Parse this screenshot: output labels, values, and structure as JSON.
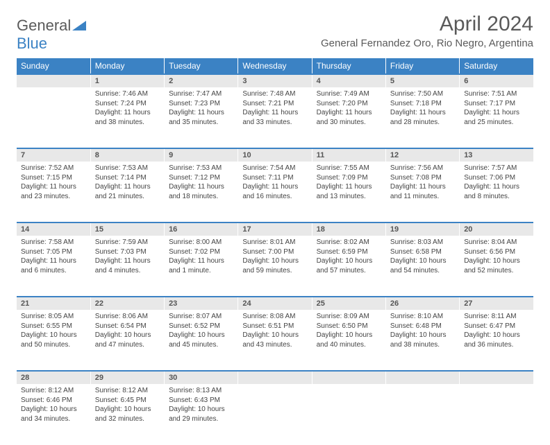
{
  "logo": {
    "general": "General",
    "blue": "Blue"
  },
  "title": "April 2024",
  "location": "General Fernandez Oro, Rio Negro, Argentina",
  "weekdays": [
    "Sunday",
    "Monday",
    "Tuesday",
    "Wednesday",
    "Thursday",
    "Friday",
    "Saturday"
  ],
  "header_bg": "#3b82c4",
  "header_fg": "#ffffff",
  "daynum_bg": "#e8e8e8",
  "row_border": "#3b82c4",
  "text_color": "#444444",
  "title_color": "#5a5a5a",
  "font_size_title": 30,
  "font_size_location": 15,
  "font_size_weekday": 12,
  "font_size_daynum": 11,
  "font_size_cell": 10,
  "weeks": [
    [
      null,
      {
        "n": "1",
        "sr": "7:46 AM",
        "ss": "7:24 PM",
        "dl": "11 hours and 38 minutes."
      },
      {
        "n": "2",
        "sr": "7:47 AM",
        "ss": "7:23 PM",
        "dl": "11 hours and 35 minutes."
      },
      {
        "n": "3",
        "sr": "7:48 AM",
        "ss": "7:21 PM",
        "dl": "11 hours and 33 minutes."
      },
      {
        "n": "4",
        "sr": "7:49 AM",
        "ss": "7:20 PM",
        "dl": "11 hours and 30 minutes."
      },
      {
        "n": "5",
        "sr": "7:50 AM",
        "ss": "7:18 PM",
        "dl": "11 hours and 28 minutes."
      },
      {
        "n": "6",
        "sr": "7:51 AM",
        "ss": "7:17 PM",
        "dl": "11 hours and 25 minutes."
      }
    ],
    [
      {
        "n": "7",
        "sr": "7:52 AM",
        "ss": "7:15 PM",
        "dl": "11 hours and 23 minutes."
      },
      {
        "n": "8",
        "sr": "7:53 AM",
        "ss": "7:14 PM",
        "dl": "11 hours and 21 minutes."
      },
      {
        "n": "9",
        "sr": "7:53 AM",
        "ss": "7:12 PM",
        "dl": "11 hours and 18 minutes."
      },
      {
        "n": "10",
        "sr": "7:54 AM",
        "ss": "7:11 PM",
        "dl": "11 hours and 16 minutes."
      },
      {
        "n": "11",
        "sr": "7:55 AM",
        "ss": "7:09 PM",
        "dl": "11 hours and 13 minutes."
      },
      {
        "n": "12",
        "sr": "7:56 AM",
        "ss": "7:08 PM",
        "dl": "11 hours and 11 minutes."
      },
      {
        "n": "13",
        "sr": "7:57 AM",
        "ss": "7:06 PM",
        "dl": "11 hours and 8 minutes."
      }
    ],
    [
      {
        "n": "14",
        "sr": "7:58 AM",
        "ss": "7:05 PM",
        "dl": "11 hours and 6 minutes."
      },
      {
        "n": "15",
        "sr": "7:59 AM",
        "ss": "7:03 PM",
        "dl": "11 hours and 4 minutes."
      },
      {
        "n": "16",
        "sr": "8:00 AM",
        "ss": "7:02 PM",
        "dl": "11 hours and 1 minute."
      },
      {
        "n": "17",
        "sr": "8:01 AM",
        "ss": "7:00 PM",
        "dl": "10 hours and 59 minutes."
      },
      {
        "n": "18",
        "sr": "8:02 AM",
        "ss": "6:59 PM",
        "dl": "10 hours and 57 minutes."
      },
      {
        "n": "19",
        "sr": "8:03 AM",
        "ss": "6:58 PM",
        "dl": "10 hours and 54 minutes."
      },
      {
        "n": "20",
        "sr": "8:04 AM",
        "ss": "6:56 PM",
        "dl": "10 hours and 52 minutes."
      }
    ],
    [
      {
        "n": "21",
        "sr": "8:05 AM",
        "ss": "6:55 PM",
        "dl": "10 hours and 50 minutes."
      },
      {
        "n": "22",
        "sr": "8:06 AM",
        "ss": "6:54 PM",
        "dl": "10 hours and 47 minutes."
      },
      {
        "n": "23",
        "sr": "8:07 AM",
        "ss": "6:52 PM",
        "dl": "10 hours and 45 minutes."
      },
      {
        "n": "24",
        "sr": "8:08 AM",
        "ss": "6:51 PM",
        "dl": "10 hours and 43 minutes."
      },
      {
        "n": "25",
        "sr": "8:09 AM",
        "ss": "6:50 PM",
        "dl": "10 hours and 40 minutes."
      },
      {
        "n": "26",
        "sr": "8:10 AM",
        "ss": "6:48 PM",
        "dl": "10 hours and 38 minutes."
      },
      {
        "n": "27",
        "sr": "8:11 AM",
        "ss": "6:47 PM",
        "dl": "10 hours and 36 minutes."
      }
    ],
    [
      {
        "n": "28",
        "sr": "8:12 AM",
        "ss": "6:46 PM",
        "dl": "10 hours and 34 minutes."
      },
      {
        "n": "29",
        "sr": "8:12 AM",
        "ss": "6:45 PM",
        "dl": "10 hours and 32 minutes."
      },
      {
        "n": "30",
        "sr": "8:13 AM",
        "ss": "6:43 PM",
        "dl": "10 hours and 29 minutes."
      },
      null,
      null,
      null,
      null
    ]
  ]
}
